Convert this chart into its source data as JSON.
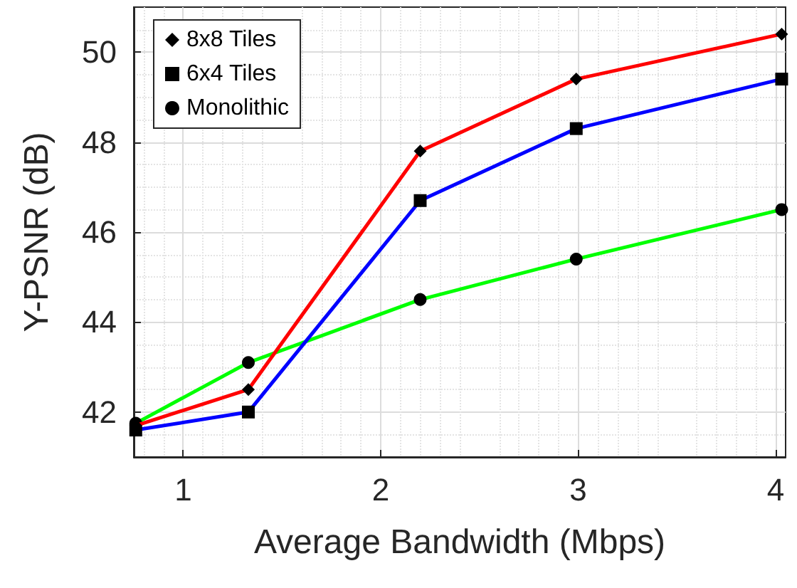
{
  "chart_data": {
    "type": "line",
    "xlabel": "Average Bandwidth (Mbps)",
    "ylabel": "Y-PSNR (dB)",
    "xlim": [
      0.75,
      4.05
    ],
    "xticks": [
      1,
      2,
      3,
      4
    ],
    "ylim": [
      41,
      51
    ],
    "yticks": [
      42,
      44,
      46,
      48,
      50
    ],
    "grid": true,
    "legend": "top left",
    "line_style": "solid",
    "series": [
      {
        "name": "8x8 Tiles",
        "color": "#ff0000",
        "marker": "diamond",
        "x": [
          0.76,
          1.33,
          2.2,
          2.99,
          4.03
        ],
        "values": [
          41.7,
          42.5,
          47.8,
          49.4,
          50.4
        ]
      },
      {
        "name": "6x4 Tiles",
        "color": "#0000ff",
        "marker": "square",
        "x": [
          0.76,
          1.33,
          2.2,
          2.99,
          4.03
        ],
        "values": [
          41.6,
          42.0,
          46.7,
          48.3,
          49.4
        ]
      },
      {
        "name": "Monolithic",
        "color": "#00ff00",
        "marker": "circle",
        "x": [
          0.76,
          1.33,
          2.2,
          2.99,
          4.03
        ],
        "values": [
          41.75,
          43.1,
          44.5,
          45.4,
          46.5
        ]
      }
    ]
  }
}
